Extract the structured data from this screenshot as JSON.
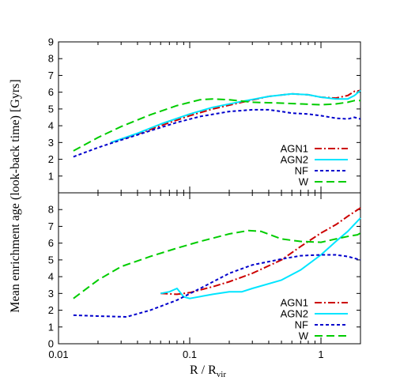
{
  "chart_data": [
    {
      "type": "line",
      "panel": "top",
      "x_scale": "log",
      "xlim": [
        0.01,
        2.0
      ],
      "ylim": [
        0,
        9
      ],
      "y_ticks": [
        "1",
        "2",
        "3",
        "4",
        "5",
        "6",
        "7",
        "8",
        "9"
      ],
      "legend_position": "bottom-right",
      "series": [
        {
          "name": "AGN1",
          "color": "#cc0000",
          "dash": "9,3,2,3",
          "x": [
            0.025,
            0.04,
            0.06,
            0.1,
            0.15,
            0.25,
            0.4,
            0.6,
            0.8,
            1.0,
            1.3,
            1.6,
            1.8,
            2.0
          ],
          "y": [
            3.0,
            3.5,
            4.0,
            4.6,
            5.0,
            5.4,
            5.75,
            5.9,
            5.85,
            5.7,
            5.65,
            5.8,
            6.05,
            6.1
          ]
        },
        {
          "name": "AGN2",
          "color": "#00e5ff",
          "dash": "",
          "x": [
            0.025,
            0.04,
            0.06,
            0.1,
            0.15,
            0.25,
            0.4,
            0.6,
            0.8,
            1.0,
            1.3,
            1.6,
            1.8,
            2.0
          ],
          "y": [
            3.0,
            3.55,
            4.1,
            4.7,
            5.1,
            5.45,
            5.75,
            5.9,
            5.85,
            5.7,
            5.6,
            5.6,
            5.8,
            6.1
          ]
        },
        {
          "name": "NF",
          "color": "#0000cc",
          "dash": "4,3",
          "x": [
            0.013,
            0.02,
            0.03,
            0.05,
            0.08,
            0.12,
            0.2,
            0.3,
            0.4,
            0.5,
            0.6,
            0.8,
            1.0,
            1.3,
            1.6,
            1.8,
            2.0
          ],
          "y": [
            2.15,
            2.7,
            3.15,
            3.7,
            4.2,
            4.55,
            4.85,
            4.95,
            4.95,
            4.85,
            4.75,
            4.7,
            4.6,
            4.45,
            4.4,
            4.5,
            4.4
          ]
        },
        {
          "name": "W",
          "color": "#00cc00",
          "dash": "10,5",
          "x": [
            0.013,
            0.02,
            0.03,
            0.05,
            0.08,
            0.12,
            0.15,
            0.2,
            0.3,
            0.5,
            0.7,
            1.0,
            1.3,
            1.6,
            1.8,
            2.0
          ],
          "y": [
            2.5,
            3.3,
            3.95,
            4.65,
            5.2,
            5.55,
            5.6,
            5.55,
            5.4,
            5.35,
            5.3,
            5.25,
            5.3,
            5.4,
            5.5,
            5.5
          ]
        }
      ]
    },
    {
      "type": "line",
      "panel": "bottom",
      "x_scale": "log",
      "xlim": [
        0.01,
        2.0
      ],
      "ylim": [
        0,
        9
      ],
      "y_ticks": [
        "0",
        "1",
        "2",
        "3",
        "4",
        "5",
        "6",
        "7",
        "8"
      ],
      "x_ticks": [
        "0.01",
        "0.1",
        "1"
      ],
      "legend_position": "bottom-right",
      "series": [
        {
          "name": "AGN1",
          "color": "#cc0000",
          "dash": "9,3,2,3",
          "x": [
            0.06,
            0.08,
            0.1,
            0.15,
            0.2,
            0.3,
            0.5,
            0.7,
            1.0,
            1.3,
            1.6,
            2.0
          ],
          "y": [
            3.0,
            2.95,
            3.05,
            3.4,
            3.7,
            4.2,
            5.0,
            5.8,
            6.6,
            7.1,
            7.6,
            8.1
          ]
        },
        {
          "name": "AGN2",
          "color": "#00e5ff",
          "dash": "",
          "x": [
            0.06,
            0.07,
            0.08,
            0.09,
            0.1,
            0.15,
            0.2,
            0.25,
            0.3,
            0.5,
            0.7,
            1.0,
            1.3,
            1.6,
            2.0
          ],
          "y": [
            3.0,
            3.1,
            3.3,
            2.8,
            2.7,
            2.95,
            3.1,
            3.1,
            3.3,
            3.8,
            4.4,
            5.3,
            6.1,
            6.7,
            7.5
          ]
        },
        {
          "name": "NF",
          "color": "#0000cc",
          "dash": "4,3",
          "x": [
            0.013,
            0.02,
            0.033,
            0.05,
            0.08,
            0.12,
            0.2,
            0.3,
            0.5,
            0.7,
            1.0,
            1.3,
            1.6,
            2.0
          ],
          "y": [
            1.7,
            1.65,
            1.6,
            2.0,
            2.6,
            3.3,
            4.2,
            4.7,
            5.05,
            5.25,
            5.3,
            5.3,
            5.2,
            5.0
          ]
        },
        {
          "name": "W",
          "color": "#00cc00",
          "dash": "10,5",
          "x": [
            0.013,
            0.02,
            0.03,
            0.05,
            0.08,
            0.12,
            0.2,
            0.28,
            0.35,
            0.5,
            0.7,
            1.0,
            1.3,
            1.6,
            1.9,
            2.0
          ],
          "y": [
            2.7,
            3.8,
            4.6,
            5.2,
            5.7,
            6.1,
            6.55,
            6.75,
            6.7,
            6.25,
            6.1,
            6.05,
            6.25,
            6.4,
            6.5,
            6.6
          ]
        }
      ]
    }
  ],
  "axes": {
    "xlabel_main": "R / R",
    "xlabel_sub": "vir",
    "ylabel": "Mean enrichment age (look-back time) [Gyrs]"
  },
  "colors": {
    "AGN1": "#cc0000",
    "AGN2": "#00e5ff",
    "NF": "#0000cc",
    "W": "#00cc00"
  }
}
